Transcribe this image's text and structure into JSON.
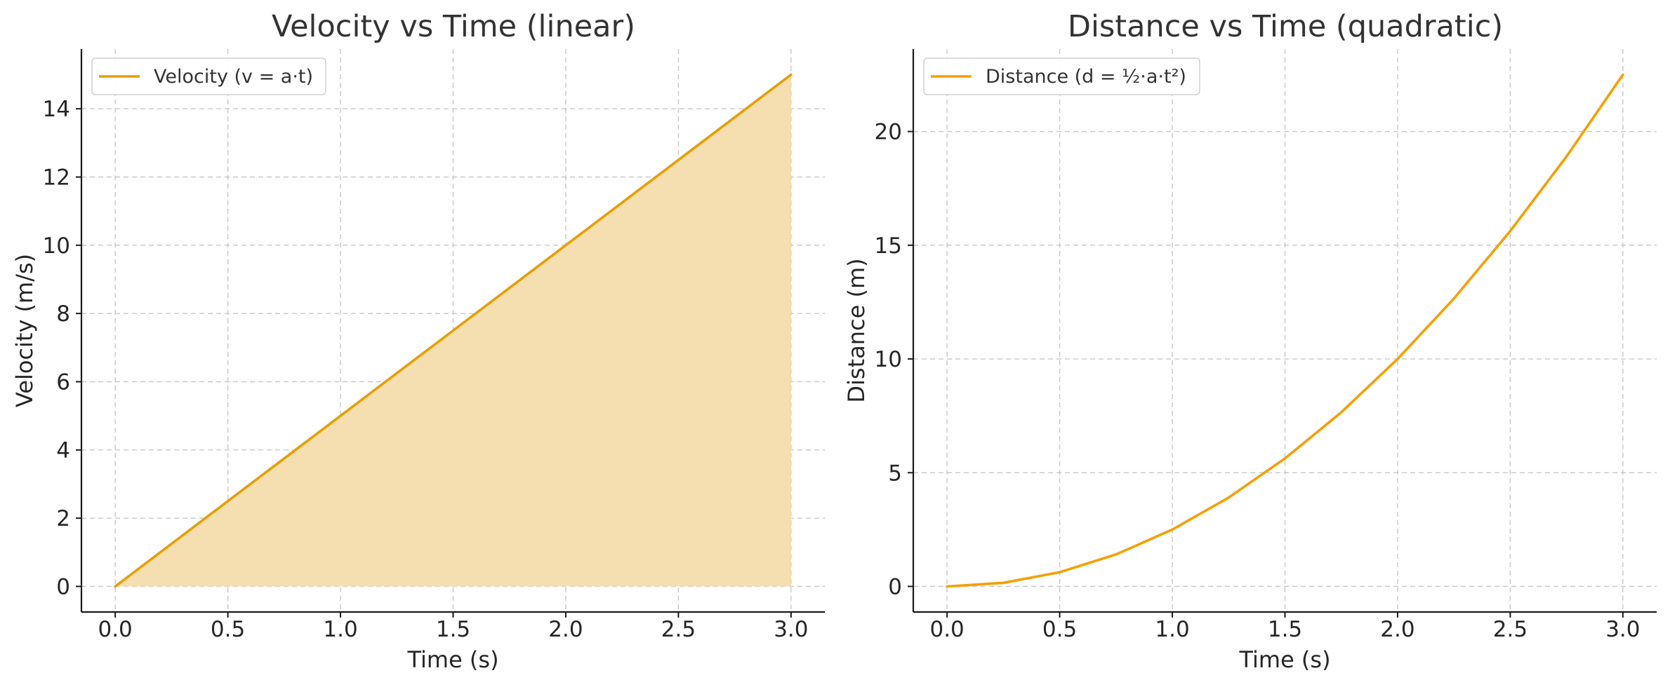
{
  "chart_data": [
    {
      "type": "area",
      "title": "Velocity vs Time (linear)",
      "xlabel": "Time (s)",
      "ylabel": "Velocity (m/s)",
      "xlim": [
        -0.15,
        3.15
      ],
      "ylim": [
        -0.75,
        15.75
      ],
      "xticks": [
        0,
        0.5,
        1,
        1.5,
        2,
        2.5,
        3
      ],
      "xtick_labels": [
        "0.0",
        "0.5",
        "1.0",
        "1.5",
        "2.0",
        "2.5",
        "3.0"
      ],
      "yticks": [
        0,
        2,
        4,
        6,
        8,
        10,
        12,
        14
      ],
      "ytick_labels": [
        "0",
        "2",
        "4",
        "6",
        "8",
        "10",
        "12",
        "14"
      ],
      "grid": true,
      "legend_position": "top-left",
      "series": [
        {
          "name": "Velocity (v = a·t)",
          "color": "#E69F00",
          "fill_color": "#F5DEB0",
          "filled": true,
          "x": [
            0,
            0.5,
            1.0,
            1.5,
            2.0,
            2.5,
            3.0
          ],
          "y": [
            0,
            2.5,
            5.0,
            7.5,
            10.0,
            12.5,
            15.0
          ]
        }
      ]
    },
    {
      "type": "line",
      "title": "Distance vs Time (quadratic)",
      "xlabel": "Time (s)",
      "ylabel": "Distance (m)",
      "xlim": [
        -0.15,
        3.15
      ],
      "ylim": [
        -1.125,
        23.625
      ],
      "xticks": [
        0,
        0.5,
        1,
        1.5,
        2,
        2.5,
        3
      ],
      "xtick_labels": [
        "0.0",
        "0.5",
        "1.0",
        "1.5",
        "2.0",
        "2.5",
        "3.0"
      ],
      "yticks": [
        0,
        5,
        10,
        15,
        20
      ],
      "ytick_labels": [
        "0",
        "5",
        "10",
        "15",
        "20"
      ],
      "grid": true,
      "legend_position": "top-left",
      "series": [
        {
          "name": "Distance (d = ½·a·t²)",
          "color": "#F5A000",
          "filled": false,
          "x": [
            0,
            0.25,
            0.5,
            0.75,
            1.0,
            1.25,
            1.5,
            1.75,
            2.0,
            2.25,
            2.5,
            2.75,
            3.0
          ],
          "y": [
            0,
            0.156,
            0.625,
            1.406,
            2.5,
            3.906,
            5.625,
            7.656,
            10.0,
            12.656,
            15.625,
            18.906,
            22.5
          ]
        }
      ]
    }
  ]
}
